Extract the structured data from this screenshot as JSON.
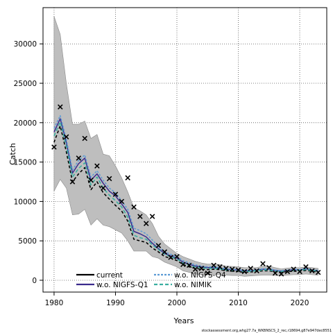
{
  "chart_data": {
    "type": "line",
    "xlabel": "Years",
    "ylabel": "Catch",
    "xlim": [
      1978.2,
      2024.4
    ],
    "ylim": [
      -1500,
      34600
    ],
    "xticks": [
      1980,
      1990,
      2000,
      2010,
      2020
    ],
    "yticks": [
      0,
      5000,
      10000,
      15000,
      20000,
      25000,
      30000
    ],
    "grid": true,
    "grid_style": "dotted",
    "legend_position": "bottom-left",
    "footer": "stockassessment.org,whg27.7a_WKBNSCS_2_rec,r18694,g87e947dec8551",
    "years": [
      1980,
      1981,
      1982,
      1983,
      1984,
      1985,
      1986,
      1987,
      1988,
      1989,
      1990,
      1991,
      1992,
      1993,
      1994,
      1995,
      1996,
      1997,
      1998,
      1999,
      2000,
      2001,
      2002,
      2003,
      2004,
      2005,
      2006,
      2007,
      2008,
      2009,
      2010,
      2011,
      2012,
      2013,
      2014,
      2015,
      2016,
      2017,
      2018,
      2019,
      2020,
      2021,
      2022,
      2023
    ],
    "confidence_band": {
      "name": "",
      "color": "#bebebe",
      "upper": [
        33500,
        31200,
        25000,
        19800,
        19800,
        20200,
        18000,
        18500,
        16000,
        15800,
        14500,
        13000,
        11200,
        9200,
        8800,
        8300,
        7200,
        5600,
        4600,
        4000,
        3400,
        3000,
        2700,
        2400,
        2200,
        2050,
        2050,
        2000,
        1800,
        1750,
        1700,
        1600,
        1600,
        1600,
        1800,
        1800,
        1600,
        1450,
        1550,
        1600,
        1600,
        1700,
        1600,
        1500
      ],
      "lower": [
        11300,
        12800,
        11700,
        8300,
        8400,
        9000,
        7000,
        7800,
        7000,
        6800,
        6400,
        6000,
        5000,
        3700,
        3700,
        3700,
        3000,
        2800,
        2300,
        2000,
        1700,
        1200,
        1000,
        800,
        700,
        700,
        750,
        750,
        650,
        600,
        600,
        500,
        550,
        600,
        650,
        650,
        600,
        580,
        650,
        700,
        700,
        800,
        700,
        650
      ]
    },
    "series": [
      {
        "name": "current",
        "color": "#000000",
        "dash": "4,3",
        "width": 1.6,
        "values": [
          17500,
          19600,
          16300,
          12500,
          13500,
          14300,
          11500,
          12500,
          11100,
          10300,
          9500,
          8800,
          7500,
          5200,
          5000,
          4800,
          4100,
          3600,
          3000,
          2800,
          2500,
          2000,
          1700,
          1500,
          1400,
          1350,
          1400,
          1350,
          1200,
          1150,
          1100,
          1000,
          1050,
          1100,
          1200,
          1200,
          1050,
          1000,
          1100,
          1150,
          1150,
          1250,
          1150,
          1050
        ]
      },
      {
        "name": "w.o. NIGFS-Q1",
        "color": "#3a2a8c",
        "dash": "",
        "width": 1.5,
        "values": [
          18800,
          20500,
          17500,
          13600,
          14800,
          15500,
          12700,
          13500,
          12300,
          11300,
          10700,
          9700,
          8600,
          6200,
          5900,
          5500,
          4700,
          4000,
          3400,
          3100,
          2800,
          2300,
          2000,
          1800,
          1700,
          1600,
          1600,
          1500,
          1400,
          1350,
          1300,
          1200,
          1200,
          1300,
          1400,
          1400,
          1250,
          1150,
          1250,
          1350,
          1300,
          1450,
          1300,
          1200
        ]
      },
      {
        "name": "w.o. NIGFS-Q4",
        "color": "#5b9bd5",
        "dash": "3,2",
        "width": 1.5,
        "values": [
          19300,
          20900,
          17900,
          14000,
          15200,
          15900,
          13100,
          13900,
          12700,
          11700,
          11100,
          10100,
          9000,
          6600,
          6300,
          5900,
          5100,
          4300,
          3600,
          3300,
          3000,
          2500,
          2200,
          1950,
          1800,
          1700,
          1700,
          1600,
          1450,
          1400,
          1350,
          1250,
          1250,
          1350,
          1450,
          1450,
          1300,
          1200,
          1300,
          1400,
          1350,
          1500,
          1350,
          1250
        ]
      },
      {
        "name": "w.o. NIMIK",
        "color": "#3aaea0",
        "dash": "5,3",
        "width": 1.6,
        "values": [
          18300,
          20100,
          17000,
          13100,
          14200,
          14900,
          12100,
          13100,
          11700,
          10800,
          10100,
          9300,
          8000,
          5700,
          5400,
          5200,
          4500,
          3900,
          3300,
          3000,
          2700,
          2200,
          1900,
          1700,
          1600,
          1500,
          1500,
          1450,
          1300,
          1250,
          1200,
          1100,
          1150,
          1200,
          1300,
          1300,
          1150,
          1100,
          1200,
          1250,
          1250,
          1350,
          1250,
          1150
        ]
      }
    ],
    "observations": {
      "name": "",
      "marker": "×",
      "points": [
        [
          1980,
          16900
        ],
        [
          1981,
          22000
        ],
        [
          1982,
          18200
        ],
        [
          1983,
          12500
        ],
        [
          1984,
          15500
        ],
        [
          1985,
          18000
        ],
        [
          1986,
          12700
        ],
        [
          1987,
          14500
        ],
        [
          1988,
          11700
        ],
        [
          1989,
          12900
        ],
        [
          1990,
          10900
        ],
        [
          1991,
          10000
        ],
        [
          1992,
          13000
        ],
        [
          1993,
          9300
        ],
        [
          1994,
          8100
        ],
        [
          1995,
          7200
        ],
        [
          1996,
          8100
        ],
        [
          1997,
          4400
        ],
        [
          1998,
          3600
        ],
        [
          1999,
          2900
        ],
        [
          2000,
          3000
        ],
        [
          2001,
          2000
        ],
        [
          2002,
          1900
        ],
        [
          2003,
          1400
        ],
        [
          2004,
          1500
        ],
        [
          2005,
          900
        ],
        [
          2006,
          1900
        ],
        [
          2007,
          1700
        ],
        [
          2008,
          1500
        ],
        [
          2009,
          1400
        ],
        [
          2010,
          1300
        ],
        [
          2011,
          1100
        ],
        [
          2012,
          1500
        ],
        [
          2013,
          1200
        ],
        [
          2014,
          2100
        ],
        [
          2015,
          1600
        ],
        [
          2016,
          900
        ],
        [
          2017,
          800
        ],
        [
          2018,
          1100
        ],
        [
          2019,
          1400
        ],
        [
          2020,
          1100
        ],
        [
          2021,
          1700
        ],
        [
          2022,
          1200
        ],
        [
          2023,
          1000
        ]
      ]
    }
  }
}
